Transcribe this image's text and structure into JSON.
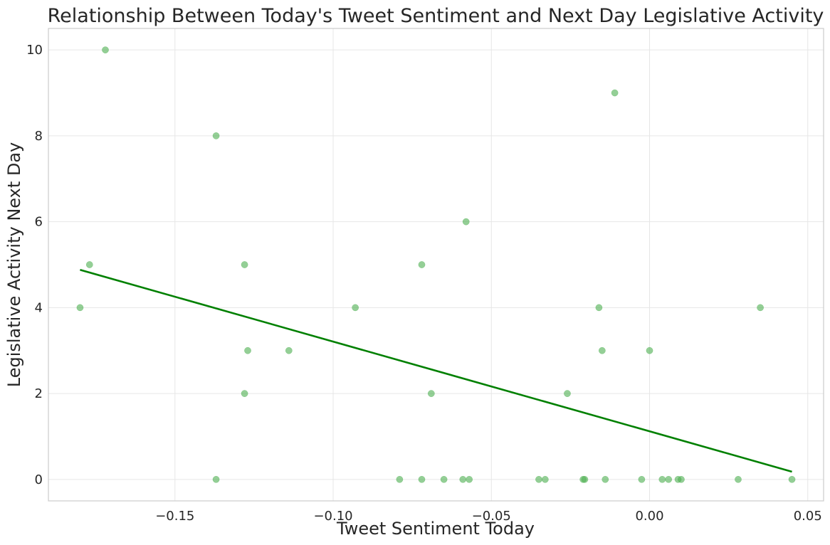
{
  "chart_data": {
    "type": "scatter",
    "title": "Relationship Between Today's Tweet Sentiment and Next Day Legislative Activity",
    "xlabel": "Tweet Sentiment Today",
    "ylabel": "Legislative Activity Next Day",
    "xlim": [
      -0.19,
      0.055
    ],
    "ylim": [
      -0.5,
      10.5
    ],
    "xticks": [
      -0.15,
      -0.1,
      -0.05,
      0.0,
      0.05
    ],
    "xtick_labels": [
      "−0.15",
      "−0.10",
      "−0.05",
      "0.00",
      "0.05"
    ],
    "yticks": [
      0,
      2,
      4,
      6,
      8,
      10
    ],
    "ytick_labels": [
      "0",
      "2",
      "4",
      "6",
      "8",
      "10"
    ],
    "grid": true,
    "colors": {
      "points": "#4caf50",
      "trend": "#008000"
    },
    "points": [
      {
        "x": -0.172,
        "y": 10
      },
      {
        "x": -0.011,
        "y": 9
      },
      {
        "x": -0.137,
        "y": 8
      },
      {
        "x": -0.058,
        "y": 6
      },
      {
        "x": -0.177,
        "y": 5
      },
      {
        "x": -0.128,
        "y": 5
      },
      {
        "x": -0.072,
        "y": 5
      },
      {
        "x": -0.18,
        "y": 4
      },
      {
        "x": -0.093,
        "y": 4
      },
      {
        "x": -0.016,
        "y": 4
      },
      {
        "x": 0.035,
        "y": 4
      },
      {
        "x": -0.127,
        "y": 3
      },
      {
        "x": -0.114,
        "y": 3
      },
      {
        "x": -0.015,
        "y": 3
      },
      {
        "x": 0.0,
        "y": 3
      },
      {
        "x": -0.128,
        "y": 2
      },
      {
        "x": -0.069,
        "y": 2
      },
      {
        "x": -0.026,
        "y": 2
      },
      {
        "x": -0.137,
        "y": 0
      },
      {
        "x": -0.079,
        "y": 0
      },
      {
        "x": -0.072,
        "y": 0
      },
      {
        "x": -0.065,
        "y": 0
      },
      {
        "x": -0.059,
        "y": 0
      },
      {
        "x": -0.057,
        "y": 0
      },
      {
        "x": -0.035,
        "y": 0
      },
      {
        "x": -0.033,
        "y": 0
      },
      {
        "x": -0.021,
        "y": 0
      },
      {
        "x": -0.0205,
        "y": 0
      },
      {
        "x": -0.014,
        "y": 0
      },
      {
        "x": -0.0025,
        "y": 0
      },
      {
        "x": 0.004,
        "y": 0
      },
      {
        "x": 0.006,
        "y": 0
      },
      {
        "x": 0.009,
        "y": 0
      },
      {
        "x": 0.01,
        "y": 0
      },
      {
        "x": 0.028,
        "y": 0
      },
      {
        "x": 0.045,
        "y": 0
      }
    ],
    "trendline": {
      "x": [
        -0.18,
        0.045
      ],
      "y": [
        4.88,
        0.18
      ]
    }
  }
}
